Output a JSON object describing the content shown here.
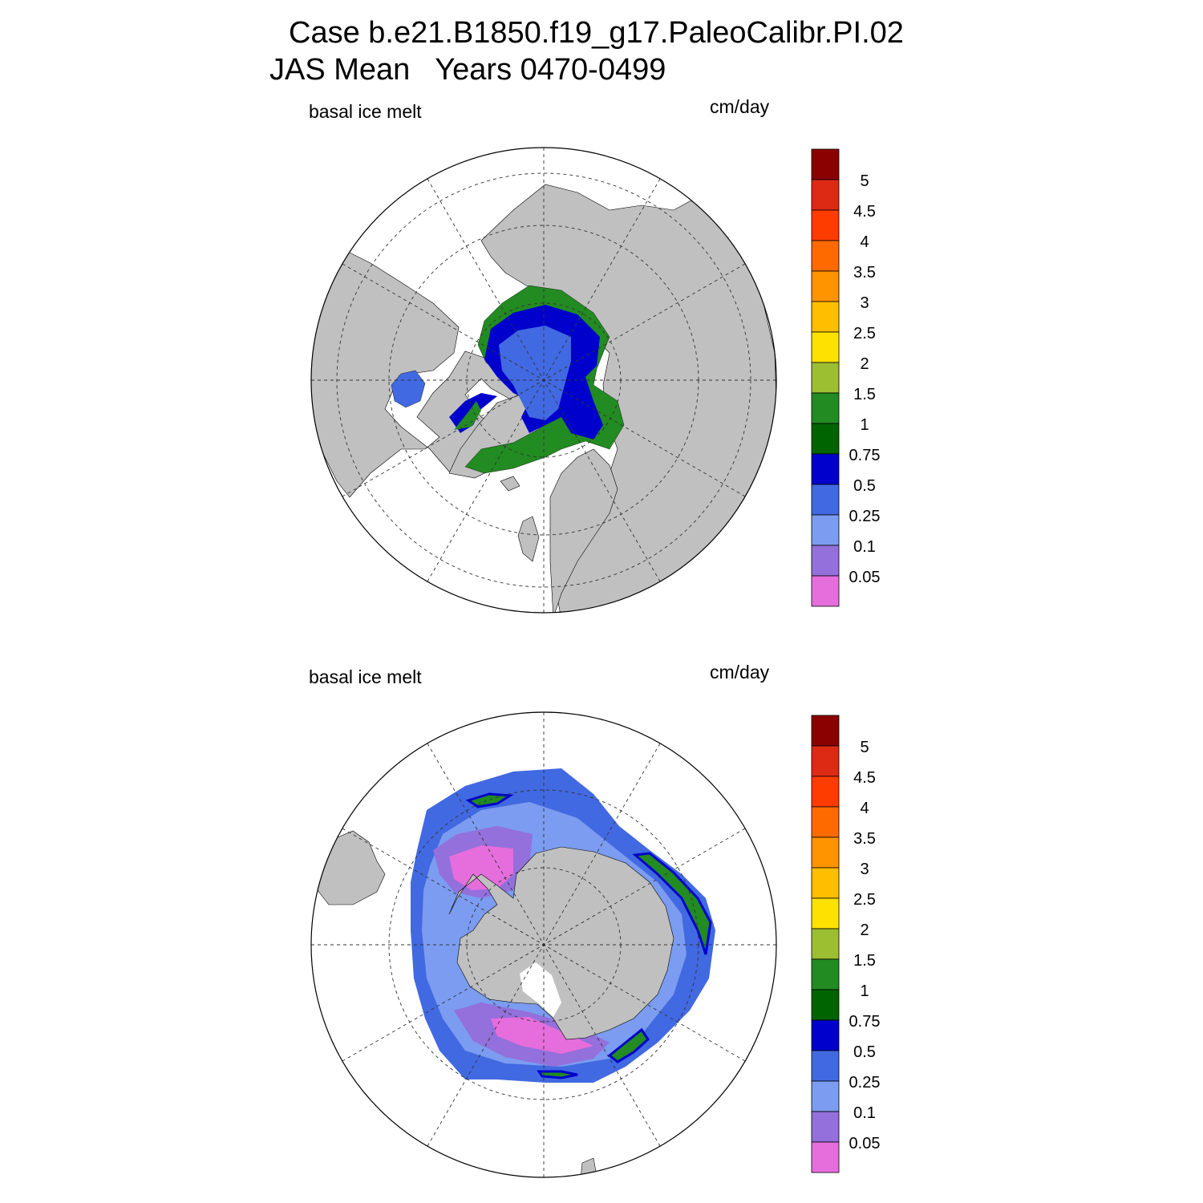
{
  "header": {
    "case_line": "Case b.e21.B1850.f19_g17.PaleoCalibr.PI.02",
    "period_line": "JAS Mean   Years 0470-0499"
  },
  "panels": [
    {
      "id": "arctic",
      "hemisphere": "north",
      "variable_label": "basal ice melt",
      "units_label": "cm/day"
    },
    {
      "id": "antarctic",
      "hemisphere": "south",
      "variable_label": "basal ice melt",
      "units_label": "cm/day"
    }
  ],
  "colorbar": {
    "levels": [
      "5",
      "4.5",
      "4",
      "3.5",
      "3",
      "2.5",
      "2",
      "1.5",
      "1",
      "0.75",
      "0.5",
      "0.25",
      "0.1",
      "0.05"
    ],
    "colors": [
      "#8b0000",
      "#dc2a14",
      "#ff3c00",
      "#ff6a00",
      "#ff9300",
      "#ffbe00",
      "#ffe100",
      "#9cbe31",
      "#228b22",
      "#006400",
      "#0000cd",
      "#4169e1",
      "#7b9cf0",
      "#9370db",
      "#e66ddc"
    ]
  },
  "map_style": {
    "land_color": "#c0c0c0",
    "ocean_color": "#ffffff",
    "grid_style": "dashed"
  }
}
